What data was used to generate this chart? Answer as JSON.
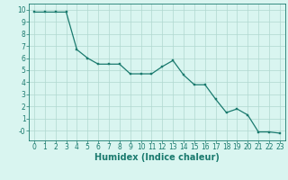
{
  "x": [
    0,
    1,
    2,
    3,
    4,
    5,
    6,
    7,
    8,
    9,
    10,
    11,
    12,
    13,
    14,
    15,
    16,
    17,
    18,
    19,
    20,
    21,
    22,
    23
  ],
  "y": [
    9.8,
    9.8,
    9.8,
    9.8,
    6.7,
    6.0,
    5.5,
    5.5,
    5.5,
    4.7,
    4.7,
    4.7,
    5.3,
    5.8,
    4.6,
    3.8,
    3.8,
    2.6,
    1.5,
    1.8,
    1.3,
    -0.1,
    -0.1,
    -0.2
  ],
  "line_color": "#1a7a6e",
  "marker_color": "#1a7a6e",
  "bg_color": "#d9f5f0",
  "grid_color": "#b0d8d0",
  "xlabel": "Humidex (Indice chaleur)",
  "xlim": [
    -0.5,
    23.5
  ],
  "ylim": [
    -0.8,
    10.5
  ],
  "xticks": [
    0,
    1,
    2,
    3,
    4,
    5,
    6,
    7,
    8,
    9,
    10,
    11,
    12,
    13,
    14,
    15,
    16,
    17,
    18,
    19,
    20,
    21,
    22,
    23
  ],
  "yticks": [
    0,
    1,
    2,
    3,
    4,
    5,
    6,
    7,
    8,
    9,
    10
  ],
  "font_color": "#1a7a6e",
  "tick_fontsize": 5.5,
  "label_fontsize": 7.0,
  "line_width": 0.9,
  "marker_size": 2.0
}
